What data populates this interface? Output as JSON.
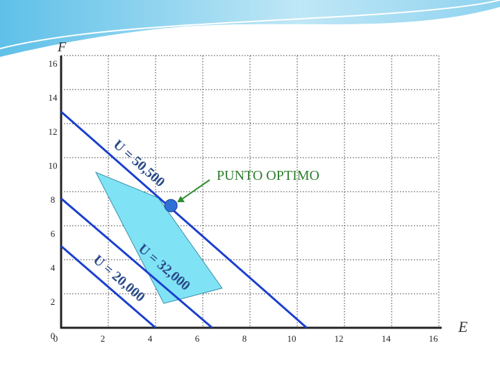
{
  "chart_data": {
    "type": "line",
    "xlabel": "E",
    "ylabel": "F",
    "xlim": [
      0,
      16
    ],
    "ylim": [
      0,
      16
    ],
    "xticks": [
      0,
      2,
      4,
      6,
      8,
      10,
      12,
      14,
      16
    ],
    "yticks": [
      0,
      2,
      4,
      6,
      8,
      10,
      12,
      14,
      16
    ],
    "grid": true,
    "series": [
      {
        "name": "U = 50,500",
        "color": "#1a3fcf",
        "x": [
          0,
          10.4
        ],
        "y": [
          12.7,
          0
        ]
      },
      {
        "name": "U = 32,000",
        "color": "#1a3fcf",
        "x": [
          0,
          6.4
        ],
        "y": [
          7.6,
          0
        ]
      },
      {
        "name": "U = 20,000",
        "color": "#1a3fcf",
        "x": [
          0,
          4.0
        ],
        "y": [
          4.8,
          0
        ]
      }
    ],
    "region": {
      "color": "#7fe3f5",
      "x": [
        1.47,
        4.12,
        6.82,
        4.35
      ],
      "y": [
        9.14,
        7.63,
        2.33,
        1.43
      ]
    },
    "optimum": {
      "label": "PUNTO OPTIMO",
      "color": "#2f6fd6",
      "x": 4.65,
      "y": 7.18
    }
  }
}
